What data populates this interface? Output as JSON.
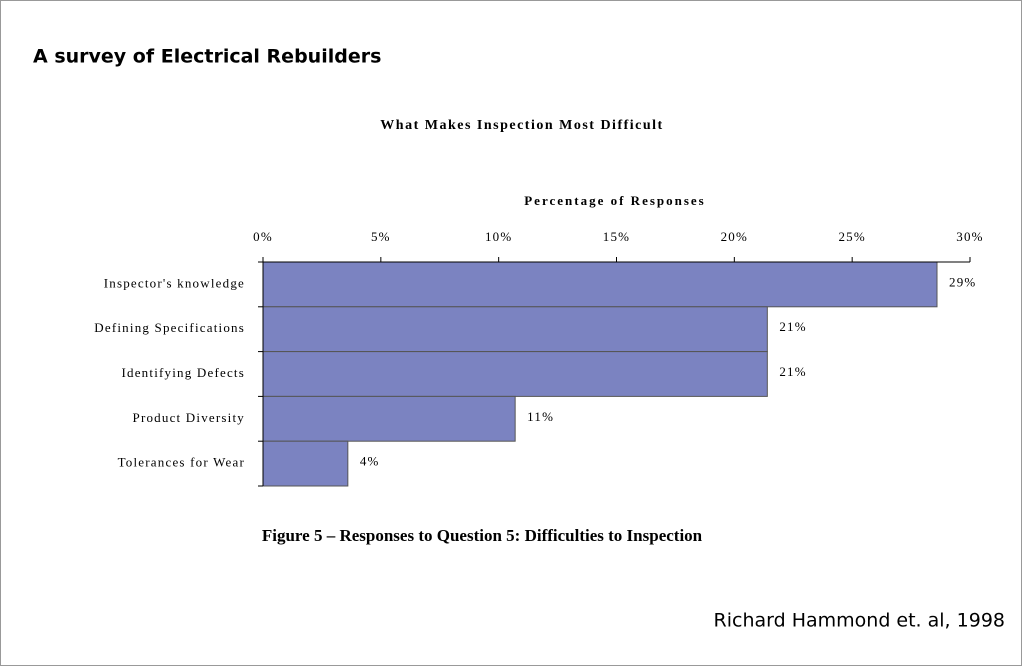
{
  "heading": "A survey of Electrical Rebuilders",
  "caption": "Figure 5 – Responses to Question 5:  Difficulties to Inspection",
  "credit": "Richard Hammond et. al, 1998",
  "chart_data": {
    "type": "hbar",
    "title": "What Makes Inspection Most Difficult",
    "x_label": "Percentage of Responses",
    "categories": [
      "Inspector's knowledge",
      "Defining Specifications",
      "Identifying Defects",
      "Product Diversity",
      "Tolerances for Wear"
    ],
    "values": [
      28.6,
      21.4,
      21.4,
      10.7,
      3.6
    ],
    "value_labels": [
      "29%",
      "21%",
      "21%",
      "11%",
      "4%"
    ],
    "color": "#7b83c1",
    "xlim": [
      0,
      30
    ],
    "xticks": [
      {
        "value": 0,
        "label": "0%"
      },
      {
        "value": 5,
        "label": "5%"
      },
      {
        "value": 10,
        "label": "10%"
      },
      {
        "value": 15,
        "label": "15%"
      },
      {
        "value": 20,
        "label": "20%"
      },
      {
        "value": 25,
        "label": "25%"
      },
      {
        "value": 30,
        "label": "30%"
      }
    ]
  }
}
